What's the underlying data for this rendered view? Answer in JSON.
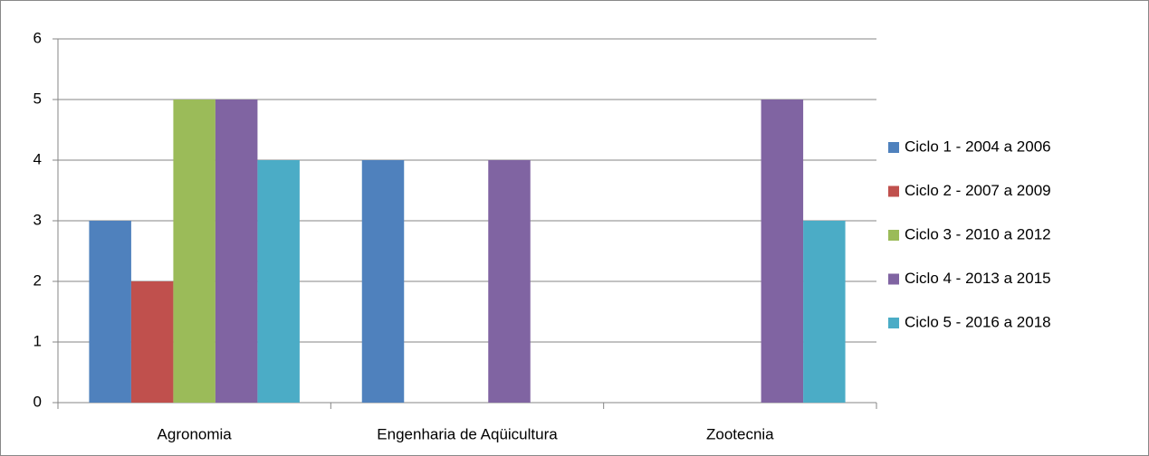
{
  "chart_data": {
    "type": "bar",
    "categories": [
      "Agronomia",
      "Engenharia de Aqüicultura",
      "Zootecnia"
    ],
    "series": [
      {
        "name": "Ciclo 1 - 2004 a 2006",
        "color": "#4f81bd",
        "values": [
          3,
          4,
          0
        ]
      },
      {
        "name": "Ciclo 2 - 2007 a 2009",
        "color": "#c0504d",
        "values": [
          2,
          0,
          0
        ]
      },
      {
        "name": "Ciclo 3 - 2010 a 2012",
        "color": "#9bbb59",
        "values": [
          5,
          0,
          0
        ]
      },
      {
        "name": "Ciclo 4 - 2013 a 2015",
        "color": "#8064a2",
        "values": [
          5,
          4,
          5
        ]
      },
      {
        "name": "Ciclo 5 - 2016 a 2018",
        "color": "#4bacc6",
        "values": [
          4,
          0,
          3
        ]
      }
    ],
    "ylim": [
      0,
      6
    ],
    "yticks": [
      0,
      1,
      2,
      3,
      4,
      5,
      6
    ],
    "grid": true,
    "legend": "right"
  }
}
